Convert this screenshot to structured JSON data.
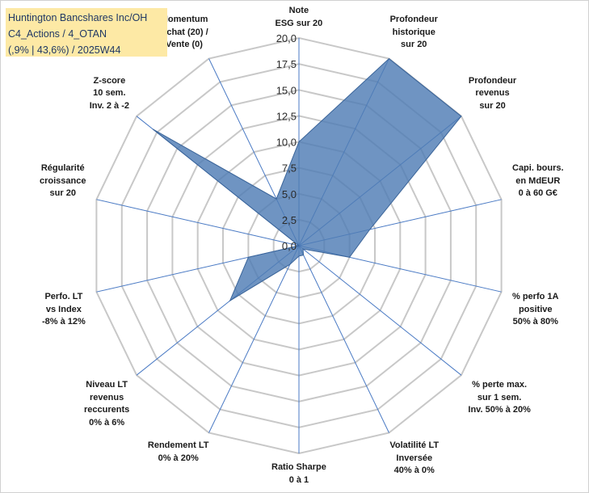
{
  "title": {
    "line1": "Huntington Bancshares Inc/OH",
    "line2": "C4_Actions / 4_OTAN",
    "line3": "(,9% | 43,6%) / 2025W44"
  },
  "colors": {
    "fill": "#4f7db5",
    "stroke": "#3a6499",
    "grid": "#c8c8c8",
    "axis": "#4a7ac4",
    "title_bg": "#fde9a5"
  },
  "chart_data": {
    "type": "radar",
    "r_range": [
      0,
      20
    ],
    "r_ticks": [
      "0,0",
      "2,5",
      "5,0",
      "7,5",
      "10,0",
      "12,5",
      "15,0",
      "17,5",
      "20,0"
    ],
    "grid": true,
    "legend": "none",
    "axes": [
      "Note\nESG sur 20",
      "Profondeur\nhistorique\nsur 20",
      "Profondeur\nrevenus\nsur 20",
      "Capi. bours.\nen MdEUR\n0 à 60 G€",
      "% perfo 1A\npositive\n50% à 80%",
      "% perte max.\nsur 1 sem.\nInv. 50% à 20%",
      "Volatilité LT\nInversée\n40% à 0%",
      "Ratio Sharpe\n0 à 1",
      "Rendement LT\n0% à 20%",
      "Niveau LT\nrevenus\nreccurents\n0% à 6%",
      "Perfo. LT\nvs Index\n-8% à 12%",
      "Régularité\ncroissance\nsur 20",
      "Z-score\n10 sem.\nInv. 2 à -2",
      "Momentum\nAchat (20) /\nVente (0)"
    ],
    "values": [
      10,
      20,
      20,
      7,
      5,
      0.5,
      1,
      1,
      2,
      8.5,
      5,
      0,
      18,
      5
    ]
  }
}
